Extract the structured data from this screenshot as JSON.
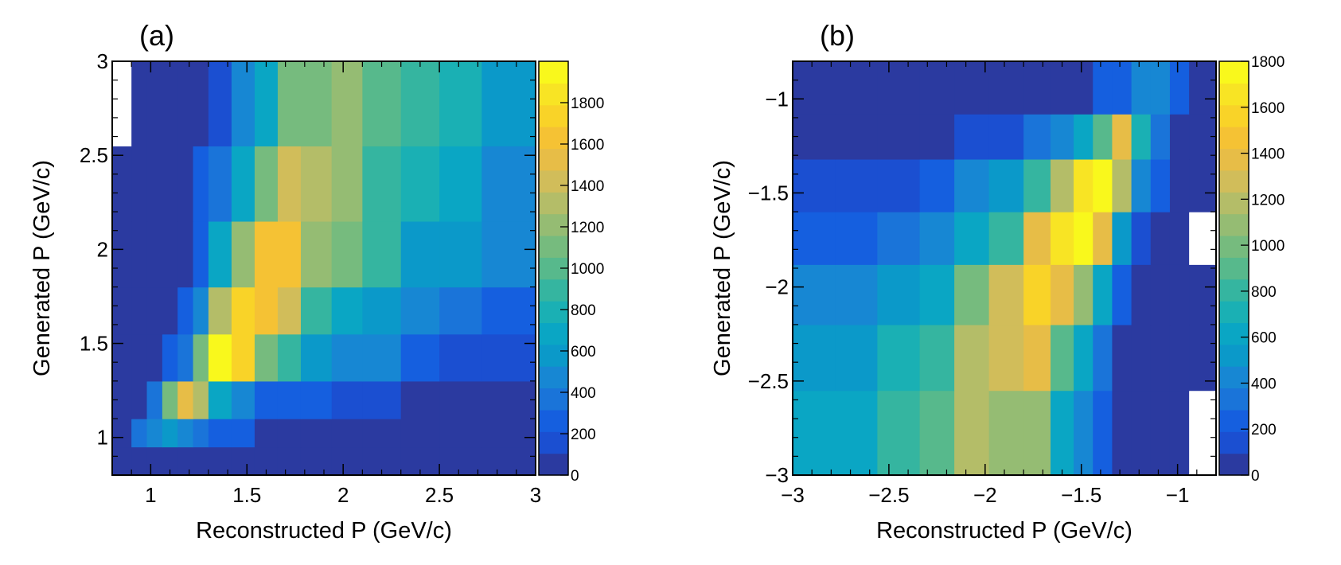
{
  "palette_note": "ROOT kBird-style blue-to-yellow palette",
  "palette": [
    "#2b3aa0",
    "#1b4fd1",
    "#155fdf",
    "#1a74d9",
    "#1787d3",
    "#0b99c9",
    "#0aa6c4",
    "#1ab0b4",
    "#35b5a0",
    "#57b98c",
    "#76bb7e",
    "#95bc73",
    "#b4bd68",
    "#d1bd5a",
    "#e7bd47",
    "#f5c234",
    "#f9d328",
    "#f8e424",
    "#f9f81c"
  ],
  "chart_data": [
    {
      "panel": "(a)",
      "type": "heatmap",
      "xlabel": "Reconstructed P (GeV/c)",
      "ylabel": "Generated P (GeV/c)",
      "xlim": [
        0.8,
        3.0
      ],
      "ylim": [
        0.8,
        3.0
      ],
      "xticks": [
        1,
        1.5,
        2,
        2.5,
        3
      ],
      "xtick_labels": [
        "1",
        "1.5",
        "2",
        "2.5",
        "3"
      ],
      "yticks": [
        1,
        1.5,
        2,
        2.5,
        3
      ],
      "ytick_labels": [
        "1",
        "1.5",
        "2",
        "2.5",
        "3"
      ],
      "zlim": [
        0,
        2000
      ],
      "colorbar_ticks": [
        0,
        200,
        400,
        600,
        800,
        1000,
        1200,
        1400,
        1600,
        1800
      ],
      "colorbar_labels": [
        "0",
        "200",
        "400",
        "600",
        "800",
        "1000",
        "1200",
        "1400",
        "1600",
        "1800"
      ],
      "x_edges": [
        0.8,
        0.9,
        0.98,
        1.06,
        1.14,
        1.22,
        1.3,
        1.42,
        1.54,
        1.66,
        1.78,
        1.94,
        2.1,
        2.3,
        2.5,
        2.72,
        3.0
      ],
      "y_edges": [
        0.8,
        0.95,
        1.1,
        1.3,
        1.55,
        1.8,
        2.15,
        2.55,
        3.0
      ],
      "z": [
        [
          20,
          20,
          20,
          20,
          20,
          20,
          20,
          20,
          20,
          20,
          20,
          20,
          20,
          20,
          20,
          20
        ],
        [
          20,
          380,
          480,
          560,
          480,
          380,
          280,
          280,
          20,
          20,
          20,
          20,
          20,
          20,
          20,
          20
        ],
        [
          20,
          20,
          380,
          1150,
          1500,
          1300,
          700,
          450,
          300,
          280,
          240,
          200,
          200,
          20,
          20,
          20
        ],
        [
          20,
          20,
          20,
          270,
          420,
          1150,
          1950,
          1750,
          1150,
          850,
          600,
          500,
          480,
          300,
          150,
          150
        ],
        [
          20,
          20,
          20,
          20,
          300,
          500,
          1350,
          1750,
          1600,
          1450,
          850,
          650,
          600,
          500,
          400,
          300
        ],
        [
          20,
          20,
          20,
          20,
          20,
          300,
          650,
          1250,
          1650,
          1650,
          1250,
          1100,
          850,
          600,
          600,
          450
        ],
        [
          20,
          20,
          20,
          20,
          20,
          220,
          420,
          650,
          1100,
          1450,
          1300,
          1200,
          900,
          800,
          650,
          500
        ],
        [
          20,
          20,
          20,
          20,
          20,
          20,
          200,
          450,
          650,
          1150,
          1150,
          1250,
          1000,
          850,
          750,
          600
        ]
      ],
      "blank_cells": [
        [
          7,
          0
        ]
      ]
    },
    {
      "panel": "(b)",
      "type": "heatmap",
      "xlabel": "Reconstructed P (GeV/c)",
      "ylabel": "Generated P (GeV/c)",
      "xlim": [
        -3.0,
        -0.8
      ],
      "ylim": [
        -3.0,
        -0.8
      ],
      "xticks": [
        -3,
        -2.5,
        -2,
        -1.5,
        -1
      ],
      "xtick_labels": [
        "−3",
        "−2.5",
        "−2",
        "−1.5",
        "−1"
      ],
      "yticks": [
        -3,
        -2.5,
        -2,
        -1.5,
        -1
      ],
      "ytick_labels": [
        "−3",
        "−2.5",
        "−2",
        "−1.5",
        "−1"
      ],
      "zlim": [
        0,
        1800
      ],
      "colorbar_ticks": [
        0,
        200,
        400,
        600,
        800,
        1000,
        1200,
        1400,
        1600,
        1800
      ],
      "colorbar_labels": [
        "0",
        "200",
        "400",
        "600",
        "800",
        "1000",
        "1200",
        "1400",
        "1600",
        "1800"
      ],
      "x_edges": [
        -3.0,
        -2.78,
        -2.56,
        -2.34,
        -2.16,
        -1.98,
        -1.8,
        -1.66,
        -1.54,
        -1.44,
        -1.34,
        -1.24,
        -1.14,
        -1.04,
        -0.94,
        -0.8
      ],
      "y_edges": [
        -3.0,
        -2.55,
        -2.2,
        -1.88,
        -1.6,
        -1.32,
        -1.08,
        -0.8
      ],
      "z": [
        [
          620,
          650,
          850,
          920,
          1150,
          1050,
          1050,
          620,
          450,
          270,
          20,
          20,
          20,
          20,
          20
        ],
        [
          500,
          560,
          720,
          850,
          1150,
          1270,
          1370,
          900,
          620,
          320,
          20,
          20,
          20,
          20,
          20
        ],
        [
          400,
          470,
          540,
          620,
          950,
          1300,
          1600,
          1350,
          1100,
          650,
          250,
          20,
          20,
          20,
          20
        ],
        [
          200,
          220,
          330,
          400,
          650,
          850,
          1350,
          1650,
          1800,
          1350,
          520,
          120,
          20,
          20,
          20
        ],
        [
          180,
          180,
          180,
          280,
          400,
          550,
          850,
          1200,
          1650,
          1900,
          1150,
          450,
          250,
          20,
          20
        ],
        [
          20,
          20,
          20,
          20,
          150,
          180,
          300,
          420,
          620,
          900,
          1350,
          700,
          300,
          20,
          20
        ],
        [
          20,
          20,
          20,
          20,
          20,
          20,
          20,
          20,
          20,
          200,
          280,
          400,
          420,
          200,
          20
        ]
      ],
      "blank_cells": [
        [
          0,
          14
        ],
        [
          3,
          14
        ]
      ]
    }
  ]
}
